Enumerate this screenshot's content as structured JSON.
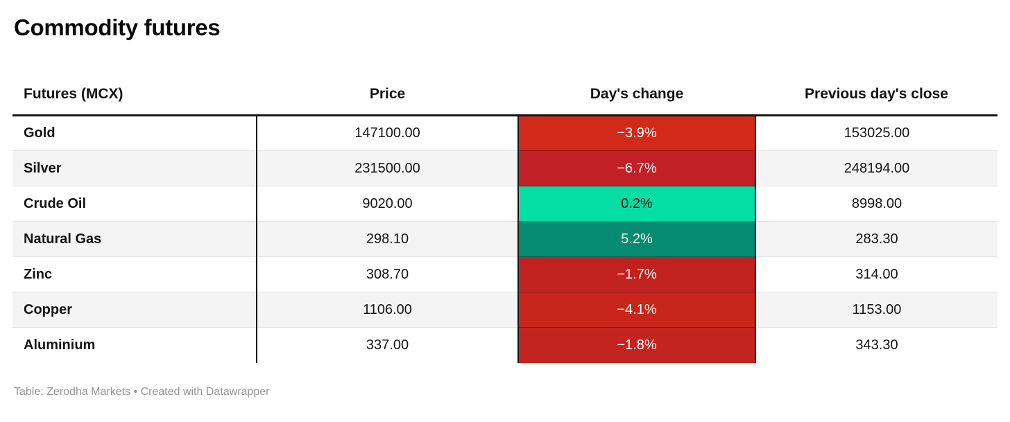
{
  "title": "Commodity futures",
  "footer": "Table: Zerodha Markets • Created with Datawrapper",
  "colors": {
    "header_rule": "#161616",
    "zebra_stripe": "#f4f4f4",
    "footer_text": "#939393",
    "negative_text": "#ffffff",
    "positive_small_text": "#111111"
  },
  "table": {
    "columns": [
      "Futures (MCX)",
      "Price",
      "Day's change",
      "Previous day's close"
    ],
    "rows": [
      {
        "name": "Gold",
        "price": "147100.00",
        "change": "−3.9%",
        "prev": "153025.00",
        "change_bg": "#d2291a",
        "change_fg": "#ffffff"
      },
      {
        "name": "Silver",
        "price": "231500.00",
        "change": "−6.7%",
        "prev": "248194.00",
        "change_bg": "#c12026",
        "change_fg": "#ffffff"
      },
      {
        "name": "Crude Oil",
        "price": "9020.00",
        "change": "0.2%",
        "prev": "8998.00",
        "change_bg": "#04dda4",
        "change_fg": "#111111"
      },
      {
        "name": "Natural Gas",
        "price": "298.10",
        "change": "5.2%",
        "prev": "283.30",
        "change_bg": "#058c70",
        "change_fg": "#ffffff"
      },
      {
        "name": "Zinc",
        "price": "308.70",
        "change": "−1.7%",
        "prev": "314.00",
        "change_bg": "#c2221f",
        "change_fg": "#ffffff"
      },
      {
        "name": "Copper",
        "price": "1106.00",
        "change": "−4.1%",
        "prev": "1153.00",
        "change_bg": "#c9261b",
        "change_fg": "#ffffff"
      },
      {
        "name": "Aluminium",
        "price": "337.00",
        "change": "−1.8%",
        "prev": "343.30",
        "change_bg": "#c32420",
        "change_fg": "#ffffff"
      }
    ]
  },
  "chart_data": {
    "type": "table",
    "title": "Commodity futures",
    "columns": [
      "Futures (MCX)",
      "Price",
      "Day's change",
      "Previous day's close"
    ],
    "rows": [
      [
        "Gold",
        147100.0,
        -3.9,
        153025.0
      ],
      [
        "Silver",
        231500.0,
        -6.7,
        248194.0
      ],
      [
        "Crude Oil",
        9020.0,
        0.2,
        8998.0
      ],
      [
        "Natural Gas",
        298.1,
        5.2,
        283.3
      ],
      [
        "Zinc",
        308.7,
        -1.7,
        314.0
      ],
      [
        "Copper",
        1106.0,
        -4.1,
        1153.0
      ],
      [
        "Aluminium",
        337.0,
        -1.8,
        343.3
      ]
    ],
    "notes": "Day's change column is a diverging heatmap: red for declines, green for gains",
    "source": "Table: Zerodha Markets • Created with Datawrapper"
  }
}
